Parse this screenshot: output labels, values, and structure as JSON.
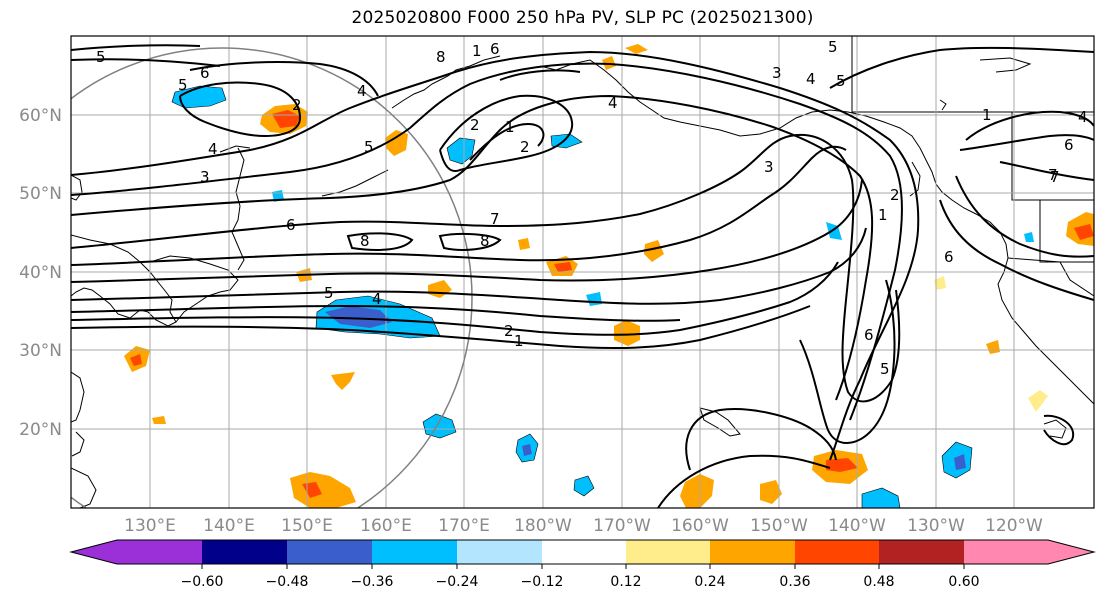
{
  "title": "2025020800 F000 250 hPa PV, SLP PC (2025021300)",
  "map": {
    "lat_labels": [
      "60°N",
      "50°N",
      "40°N",
      "30°N",
      "20°N"
    ],
    "lon_labels": [
      "130°E",
      "140°E",
      "150°E",
      "160°E",
      "170°E",
      "180°W",
      "170°W",
      "160°W",
      "150°W",
      "140°W",
      "130°W",
      "120°W"
    ],
    "label_color": "#8a8a8a",
    "contour_color": "#000000",
    "contour_labels": [
      "5",
      "6",
      "5",
      "4",
      "5",
      "2",
      "3",
      "4",
      "8",
      "1",
      "6",
      "5",
      "3",
      "4",
      "5",
      "2",
      "1",
      "2",
      "3",
      "1",
      "2",
      "6",
      "7",
      "8",
      "6",
      "7",
      "8",
      "5",
      "4",
      "2",
      "1",
      "6",
      "5",
      "4",
      "1",
      "6",
      "7",
      "4"
    ]
  },
  "colorbar": {
    "colors": [
      "#9b30d9",
      "#00008b",
      "#3a5fcd",
      "#00bfff",
      "#b3e5ff",
      "#ffffff",
      "#ffec8b",
      "#ffa500",
      "#ff4500",
      "#b22222",
      "#ff87b0"
    ],
    "tick_labels": [
      "−0.60",
      "−0.48",
      "−0.36",
      "−0.24",
      "−0.12",
      "0.12",
      "0.24",
      "0.36",
      "0.48",
      "0.60"
    ]
  }
}
